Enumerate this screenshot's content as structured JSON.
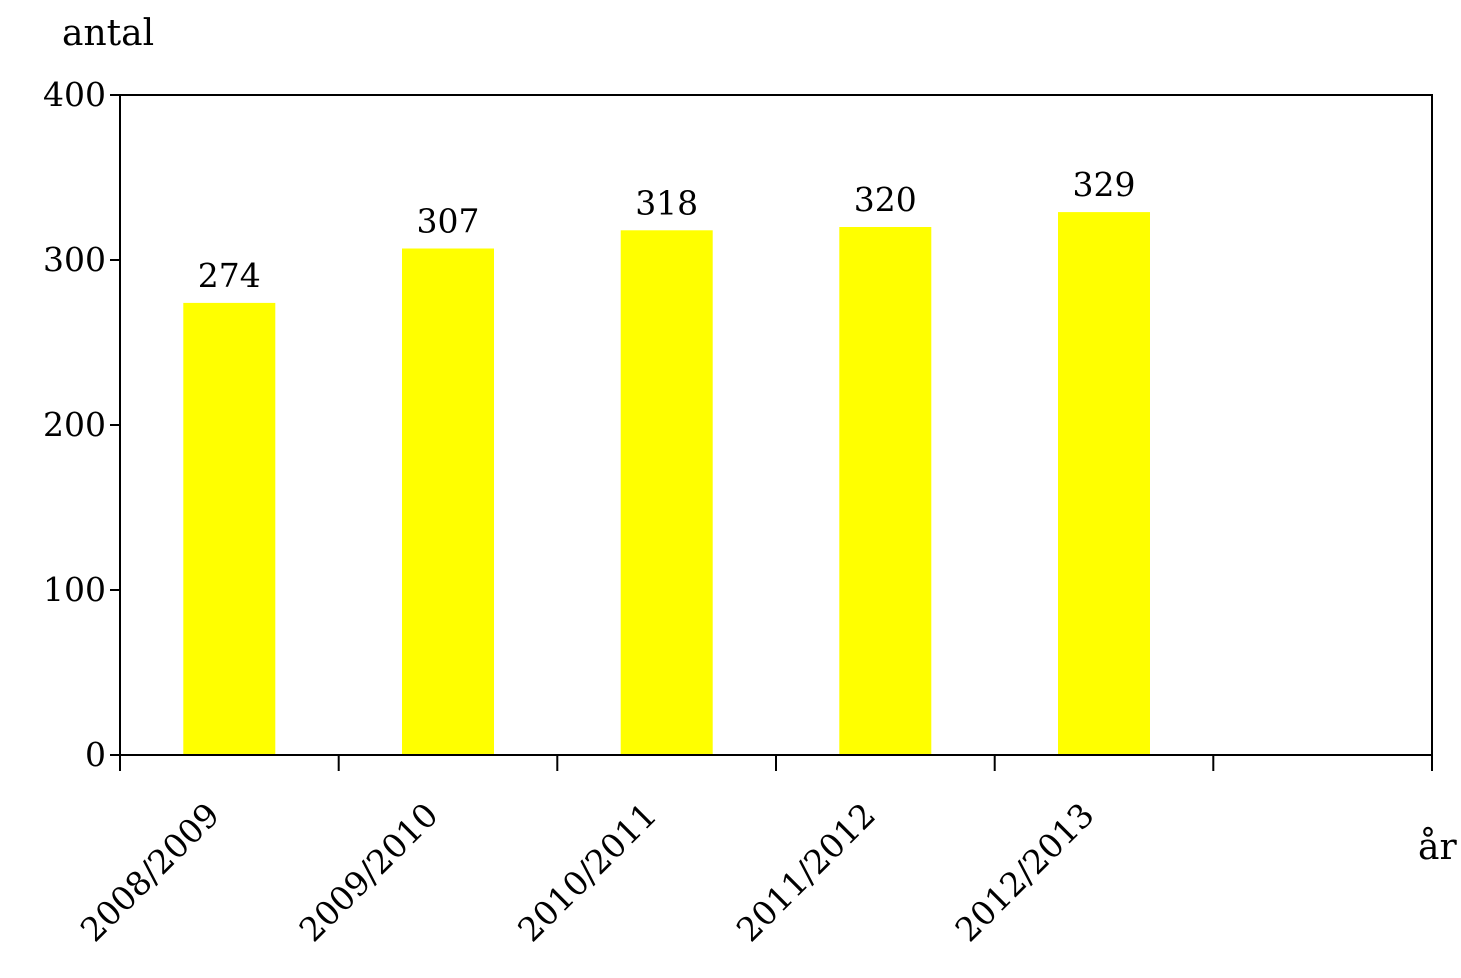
{
  "chart_data": {
    "type": "bar",
    "categories": [
      "2008/2009",
      "2009/2010",
      "2010/2011",
      "2011/2012",
      "2012/2013"
    ],
    "values": [
      274,
      307,
      318,
      320,
      329
    ],
    "data_labels": [
      "274",
      "307",
      "318",
      "320",
      "329"
    ],
    "slots": 6,
    "title": "",
    "xlabel": "år",
    "ylabel": "antal",
    "ylim": [
      0,
      400
    ],
    "yticks": [
      0,
      100,
      200,
      300,
      400
    ],
    "ytick_labels": [
      "0",
      "100",
      "200",
      "300",
      "400"
    ],
    "grid": false,
    "legend": "none",
    "bar_color": "#ffff00",
    "axis_color": "#000000"
  }
}
